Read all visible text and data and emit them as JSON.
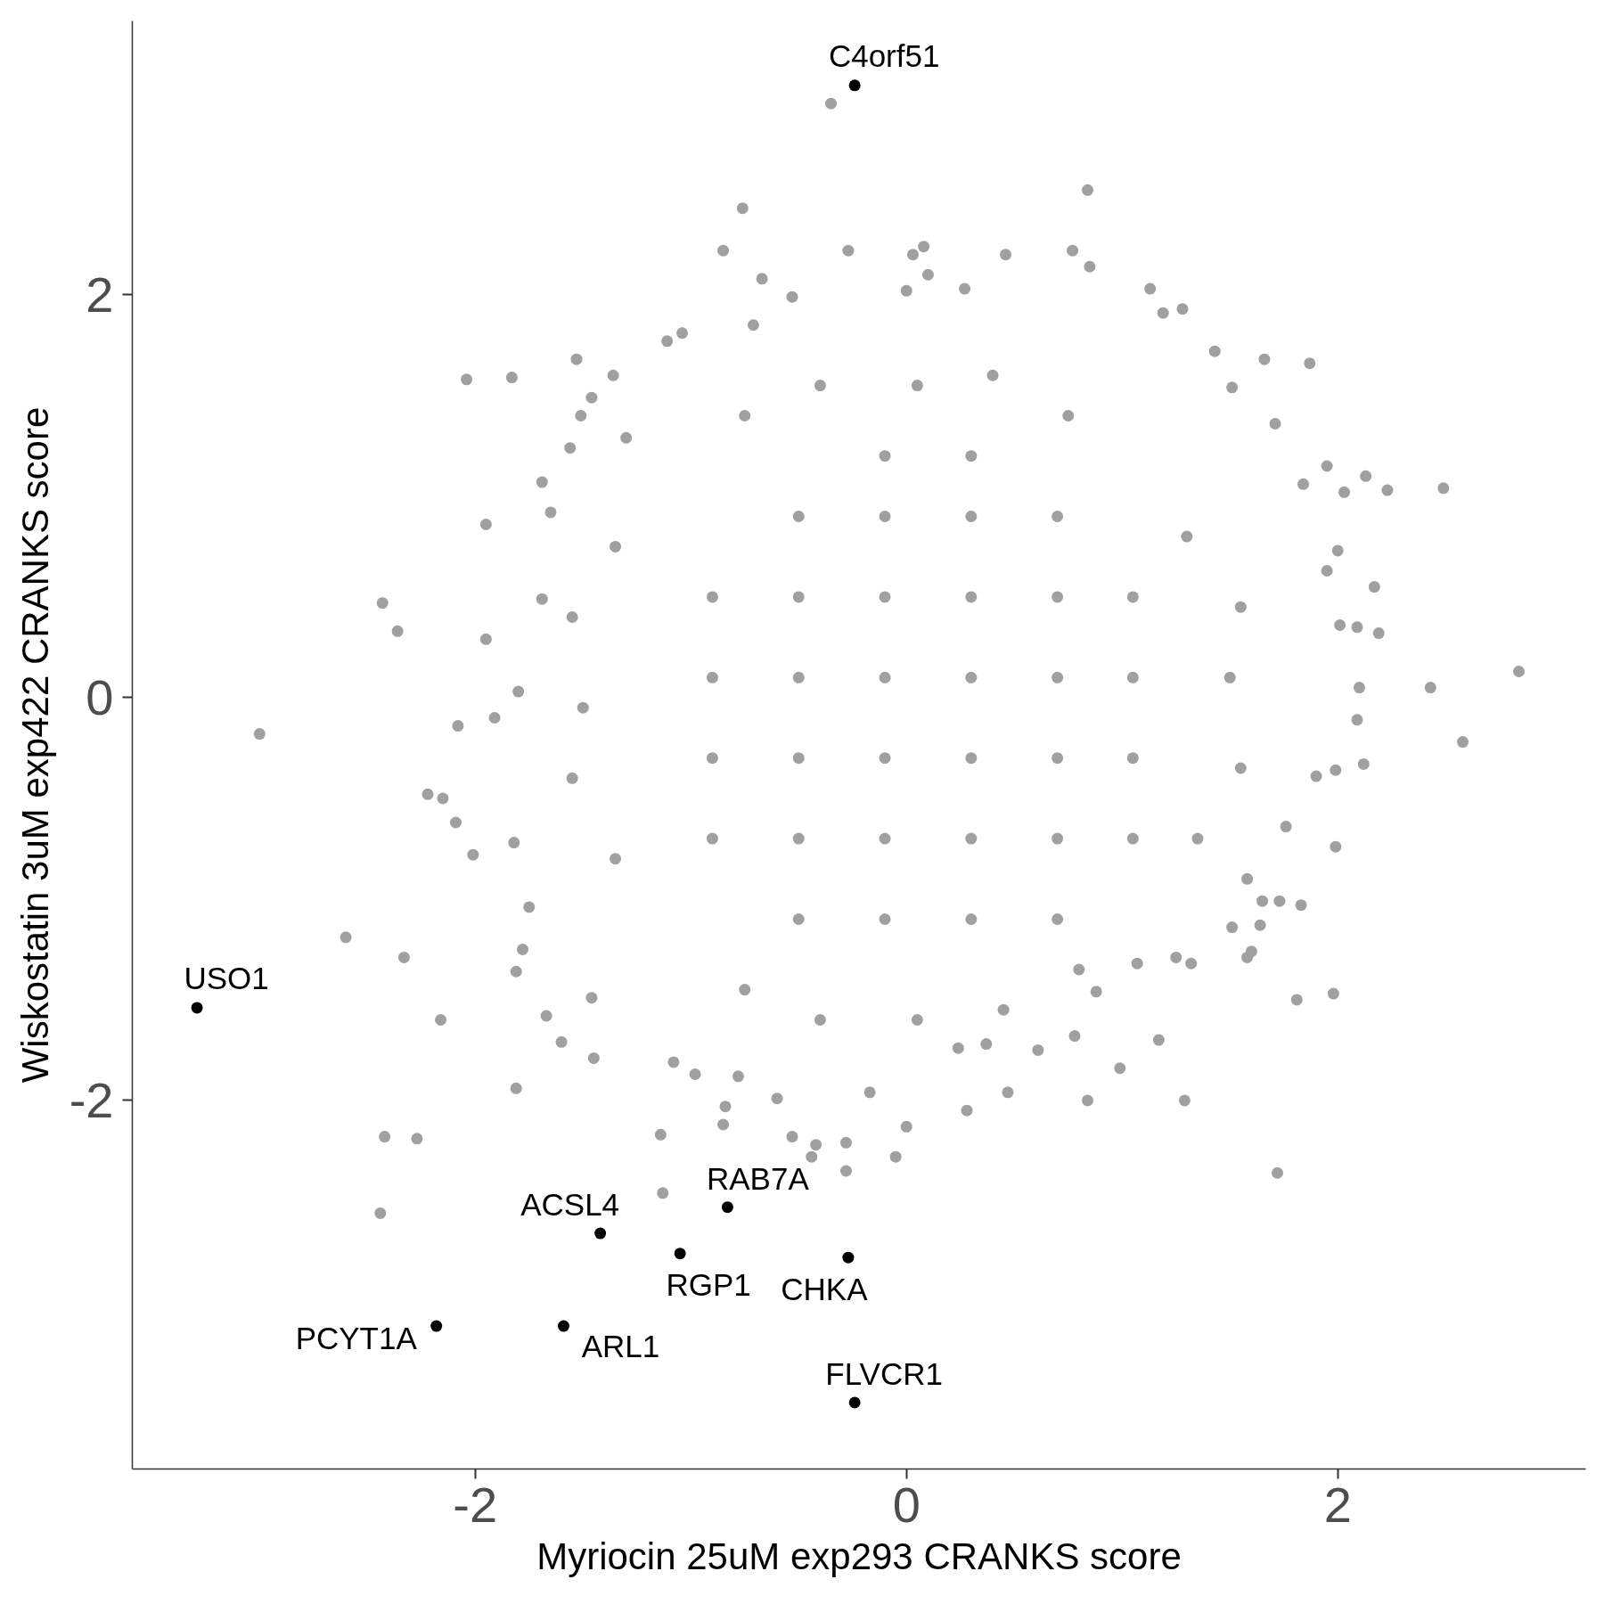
{
  "chart_data": {
    "type": "scatter",
    "xlabel": "Myriocin 25uM exp293 CRANKS score",
    "ylabel": "Wiskostatin 3uM exp422 CRANKS score",
    "xlim": [
      -3.59,
      3.15
    ],
    "ylim": [
      -3.83,
      3.36
    ],
    "xticks": [
      -2,
      0,
      2
    ],
    "yticks": [
      -2,
      0,
      2
    ],
    "marker": "circle",
    "series": [
      {
        "color": "#a0a0a0",
        "x": [
          -0.35,
          -0.76,
          0.84,
          -0.85,
          -0.27,
          0.08,
          0.03,
          0.46,
          0.77,
          0.85,
          -0.67,
          -0.53,
          1.13,
          1.19,
          1.28,
          1.43,
          1.66,
          1.87,
          1.51,
          1.71,
          -2.04,
          -1.83,
          -1.53,
          -1.36,
          -1.04,
          -1.11,
          -0.71,
          -1.46,
          -1.51,
          -1.56,
          -1.3,
          0.27,
          0.0,
          0.1,
          1.95,
          2.13,
          2.49,
          2.23,
          2.03,
          1.84,
          2.84,
          2.43,
          2.58,
          2.12,
          2.09,
          2.1,
          2.19,
          2.09,
          2.01,
          2.17,
          2.0,
          1.95,
          1.9,
          1.99,
          1.99,
          1.76,
          1.72,
          1.98,
          1.81,
          1.17,
          0.99,
          1.29,
          0.84,
          0.47,
          0.28,
          0.0,
          -0.05,
          -0.28,
          -0.28,
          -0.42,
          -0.44,
          -0.17,
          1.83,
          1.73,
          1.65,
          1.6,
          1.58,
          1.32,
          1.25,
          1.58,
          1.51,
          1.64,
          1.07,
          0.88,
          0.78,
          0.61,
          0.37,
          0.24,
          -1.69,
          -1.95,
          -1.65,
          -2.43,
          -2.36,
          -1.95,
          -1.69,
          -3.0,
          -2.08,
          -1.8,
          -1.91,
          -2.22,
          -2.15,
          -2.09,
          -2.01,
          -1.82,
          -1.75,
          -1.78,
          -1.81,
          -1.6,
          -1.67,
          -1.45,
          -1.46,
          -2.6,
          -2.33,
          -2.16,
          -1.81,
          -2.42,
          -2.27,
          -2.44,
          -1.13,
          -1.14,
          -0.85,
          -0.84,
          -0.53,
          -0.98,
          -1.08,
          -0.78,
          -0.6,
          0.05,
          0.75,
          1.3,
          1.5,
          1.35,
          0.8,
          0.05,
          -0.75,
          -1.35,
          -1.5,
          -1.35,
          -0.75,
          0.4,
          -0.4,
          1.55,
          1.55,
          -1.55,
          -1.55,
          0.45,
          -0.4,
          -0.1,
          0.3,
          -0.5,
          -0.1,
          0.3,
          0.7,
          -0.9,
          -0.5,
          -0.1,
          0.3,
          0.7,
          1.05,
          -0.9,
          -0.5,
          -0.1,
          0.3,
          0.7,
          1.05,
          -0.9,
          -0.5,
          -0.1,
          0.3,
          0.7,
          1.05,
          -0.9,
          -0.5,
          -0.1,
          0.3,
          0.7,
          1.05,
          -0.5,
          -0.1,
          0.3,
          0.7
        ],
        "values": [
          2.95,
          2.43,
          2.52,
          2.22,
          2.22,
          2.24,
          2.2,
          2.2,
          2.22,
          2.14,
          2.08,
          1.99,
          2.03,
          1.91,
          1.93,
          1.72,
          1.68,
          1.66,
          1.54,
          1.36,
          1.58,
          1.59,
          1.68,
          1.6,
          1.81,
          1.77,
          1.85,
          1.49,
          1.4,
          1.24,
          1.29,
          2.03,
          2.02,
          2.1,
          1.15,
          1.1,
          1.04,
          1.03,
          1.02,
          1.06,
          0.13,
          0.05,
          -0.22,
          -0.33,
          -0.11,
          0.05,
          0.32,
          0.35,
          0.36,
          0.55,
          0.73,
          0.63,
          -0.39,
          -0.36,
          -0.74,
          -0.64,
          -2.36,
          -1.47,
          -1.5,
          -1.7,
          -1.84,
          -2.0,
          -2.0,
          -1.96,
          -2.05,
          -2.13,
          -2.28,
          -2.35,
          -2.21,
          -2.22,
          -2.28,
          -1.96,
          -1.03,
          -1.01,
          -1.01,
          -1.26,
          -1.29,
          -1.32,
          -1.29,
          -0.9,
          -1.14,
          -1.13,
          -1.32,
          -1.46,
          -1.68,
          -1.75,
          -1.72,
          -1.74,
          1.07,
          0.86,
          0.92,
          0.47,
          0.33,
          0.29,
          0.49,
          -0.18,
          -0.14,
          0.03,
          -0.1,
          -0.48,
          -0.5,
          -0.62,
          -0.78,
          -0.72,
          -1.04,
          -1.25,
          -1.36,
          -1.71,
          -1.58,
          -1.79,
          -1.49,
          -1.19,
          -1.29,
          -1.6,
          -1.94,
          -2.18,
          -2.19,
          -2.56,
          -2.46,
          -2.17,
          -2.12,
          -2.03,
          -2.18,
          -1.87,
          -1.81,
          -1.88,
          -1.99,
          1.55,
          1.4,
          0.8,
          0.1,
          -0.7,
          -1.35,
          -1.6,
          -1.45,
          -0.8,
          -0.05,
          0.75,
          1.4,
          1.6,
          1.55,
          0.45,
          -0.35,
          0.4,
          -0.4,
          -1.55,
          -1.6,
          1.2,
          1.2,
          0.9,
          0.9,
          0.9,
          0.9,
          0.5,
          0.5,
          0.5,
          0.5,
          0.5,
          0.5,
          0.1,
          0.1,
          0.1,
          0.1,
          0.1,
          0.1,
          -0.3,
          -0.3,
          -0.3,
          -0.3,
          -0.3,
          -0.3,
          -0.7,
          -0.7,
          -0.7,
          -0.7,
          -0.7,
          -0.7,
          -1.1,
          -1.1,
          -1.1,
          -1.1
        ]
      },
      {
        "color": "#000000",
        "x": [
          -0.24,
          -3.29,
          -0.83,
          -1.42,
          -1.05,
          -0.27,
          -2.18,
          -1.59,
          -0.24
        ],
        "values": [
          3.04,
          -1.54,
          -2.53,
          -2.66,
          -2.76,
          -2.78,
          -3.12,
          -3.12,
          -3.5
        ]
      }
    ],
    "annotations": [
      {
        "text": "C4orf51",
        "x": -0.24,
        "y": 3.04
      },
      {
        "text": "USO1",
        "x": -3.29,
        "y": -1.54
      },
      {
        "text": "RAB7A",
        "x": -0.83,
        "y": -2.53
      },
      {
        "text": "ACSL4",
        "x": -1.42,
        "y": -2.66
      },
      {
        "text": "RGP1",
        "x": -1.05,
        "y": -2.76
      },
      {
        "text": "CHKA",
        "x": -0.27,
        "y": -2.78
      },
      {
        "text": "PCYT1A",
        "x": -2.18,
        "y": -3.12
      },
      {
        "text": "ARL1",
        "x": -1.59,
        "y": -3.12
      },
      {
        "text": "FLVCR1",
        "x": -0.24,
        "y": -3.5
      }
    ]
  }
}
